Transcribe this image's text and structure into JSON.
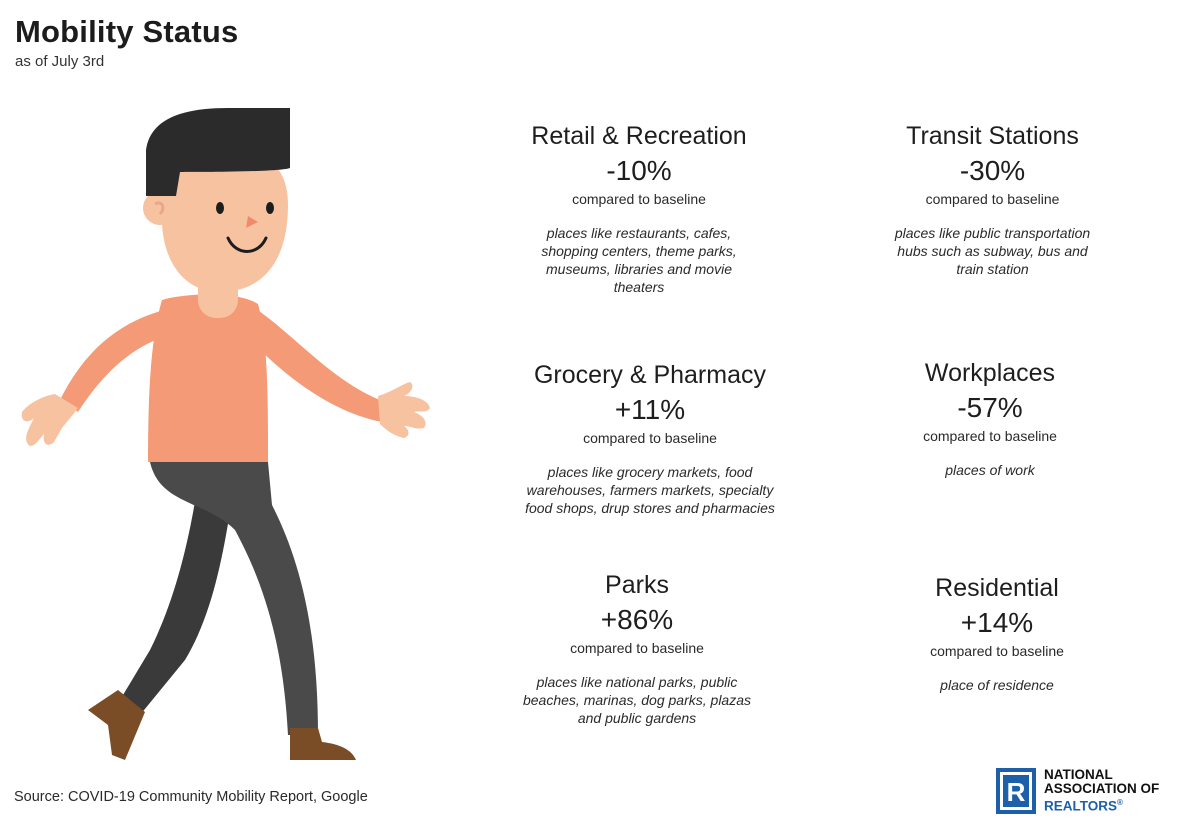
{
  "header": {
    "title": "Mobility Status",
    "subtitle": "as of July 3rd"
  },
  "illustration": {
    "name": "walking-man-illustration",
    "colors": {
      "hair": "#2b2b2b",
      "skin": "#f7c2a0",
      "shirt": "#f49a76",
      "pants": "#4a4a4a",
      "shoes": "#7a4d26"
    }
  },
  "cards": [
    {
      "category": "Retail & Recreation",
      "value": "-10%",
      "comparison": "compared to baseline",
      "description": "places like restaurants, cafes,\nshopping centers, theme parks,\nmuseums, libraries and movie\ntheaters"
    },
    {
      "category": "Transit Stations",
      "value": "-30%",
      "comparison": "compared to baseline",
      "description": "places like public transportation\nhubs such as subway, bus and\ntrain station"
    },
    {
      "category": "Grocery & Pharmacy",
      "value": "+11%",
      "comparison": "compared to baseline",
      "description": "places like grocery markets, food\nwarehouses, farmers markets, specialty\nfood shops, drup stores and pharmacies"
    },
    {
      "category": "Workplaces",
      "value": "-57%",
      "comparison": "compared to baseline",
      "description": "places of work"
    },
    {
      "category": "Parks",
      "value": "+86%",
      "comparison": "compared to baseline",
      "description": "places like national parks, public\nbeaches, marinas, dog parks, plazas\nand public gardens"
    },
    {
      "category": "Residential",
      "value": "+14%",
      "comparison": "compared to baseline",
      "description": "place of residence"
    }
  ],
  "footer": {
    "source": "Source: COVID-19 Community Mobility Report, Google",
    "logo": {
      "line1": "NATIONAL",
      "line2": "ASSOCIATION OF",
      "line3": "REALTORS",
      "registered": "®",
      "mark": "R",
      "brand_color": "#1d5fa8"
    }
  }
}
